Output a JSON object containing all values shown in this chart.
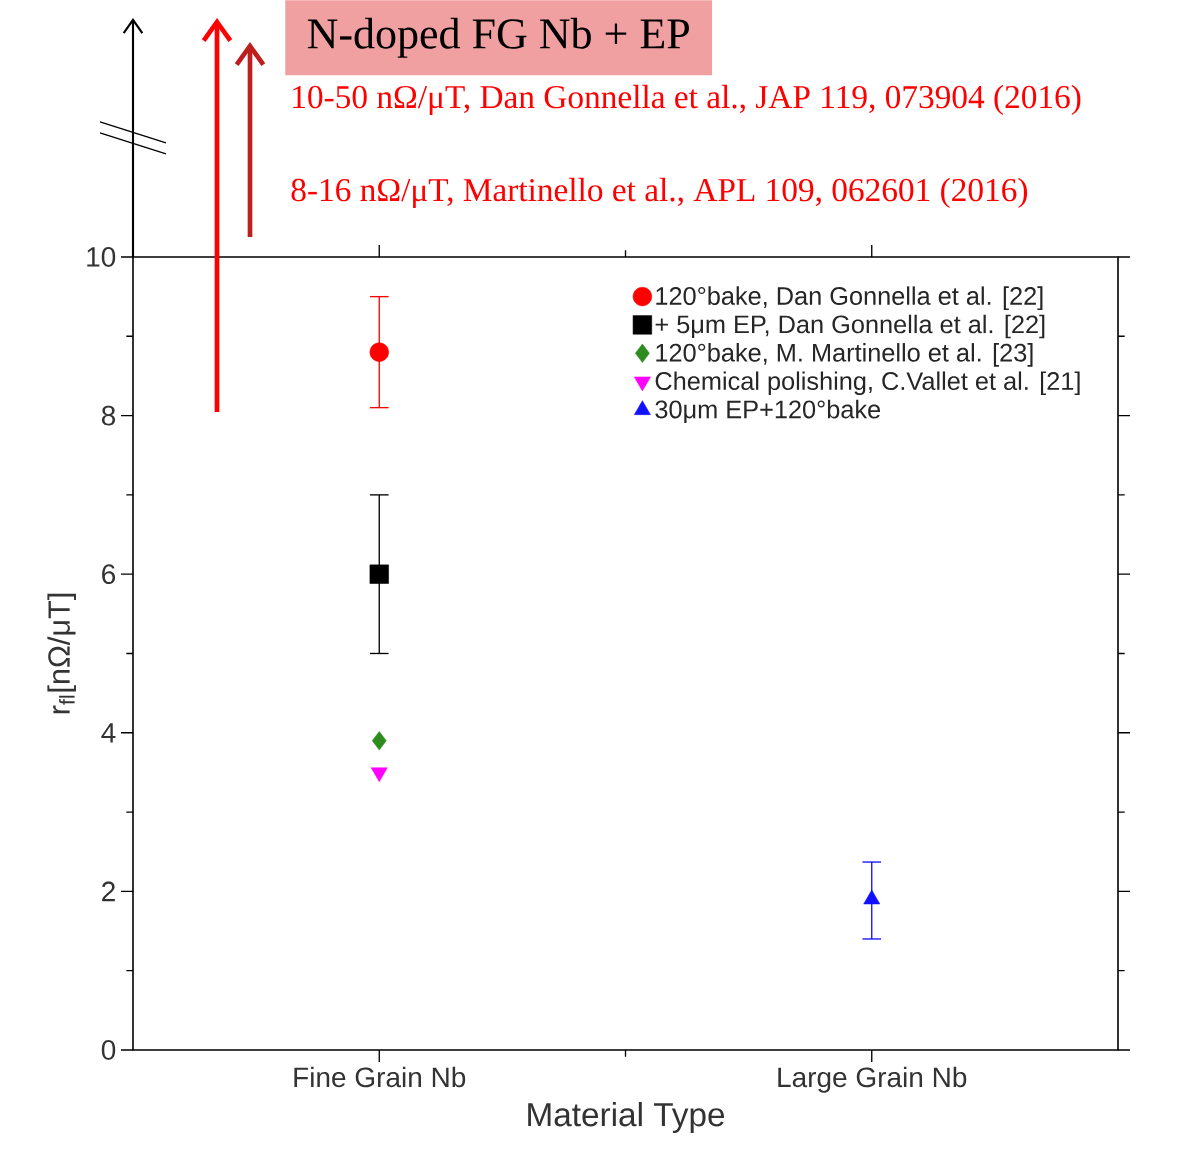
{
  "chart_data": {
    "type": "scatter",
    "title": "N-doped FG Nb + EP",
    "xlabel": "Material Type",
    "ylabel": "r$_{fl}$[nΩ/μT]",
    "categories": [
      "Fine Grain Nb",
      "Large Grain Nb"
    ],
    "series": [
      {
        "name": "120°bake, Dan Gonnella et al. [22]",
        "color": "#ff0000",
        "marker": "circle",
        "values": [
          8.8,
          null
        ],
        "errors": [
          [
            8.1,
            9.5
          ],
          null
        ]
      },
      {
        "name": "+ 5μm EP, Dan Gonnella et al. [22]",
        "color": "#000000",
        "marker": "square",
        "values": [
          6.0,
          null
        ],
        "errors": [
          [
            5.0,
            7.0
          ],
          null
        ]
      },
      {
        "name": "120°bake, M. Martinello et al. [23]",
        "color": "#2e8b1e",
        "marker": "diamond",
        "values": [
          3.9,
          null
        ]
      },
      {
        "name": "Chemical polishing, C.Vallet et al. [21]",
        "color": "#ff00ff",
        "marker": "triangle_down",
        "values": [
          3.5,
          null
        ]
      },
      {
        "name": "30μm EP+120°bake",
        "color": "#1010ff",
        "marker": "triangle",
        "values": [
          null,
          1.9
        ],
        "errors": [
          null,
          [
            1.4,
            2.37
          ]
        ]
      }
    ],
    "ylim": [
      0,
      10
    ],
    "yticks": [
      0,
      2,
      4,
      6,
      8,
      10
    ],
    "legend": "top right",
    "annotations": [
      "10-50 nΩ/μT, Dan Gonnella et al., JAP 119, 073904 (2016)",
      "8-16 nΩ/μT, Martinello et al., APL 109, 062601 (2016)"
    ]
  }
}
